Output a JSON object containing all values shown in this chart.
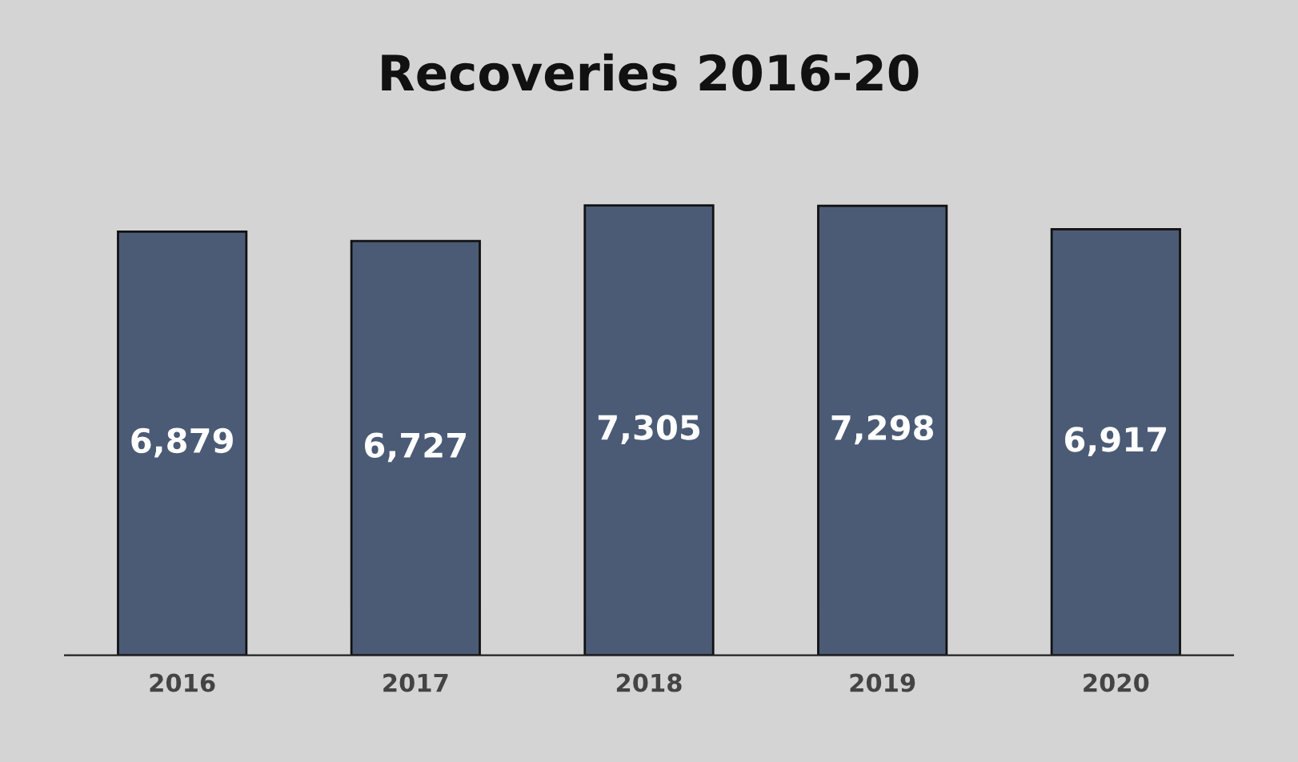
{
  "chart_data": {
    "type": "bar",
    "title": "Recoveries 2016-20",
    "categories": [
      "2016",
      "2017",
      "2018",
      "2019",
      "2020"
    ],
    "values": [
      6879,
      6727,
      7305,
      7298,
      6917
    ],
    "color": "#4b5b76",
    "value_labels": [
      "6,879",
      "6,727",
      "7,305",
      "7,298",
      "6,917"
    ],
    "grid": false,
    "legend": false
  }
}
